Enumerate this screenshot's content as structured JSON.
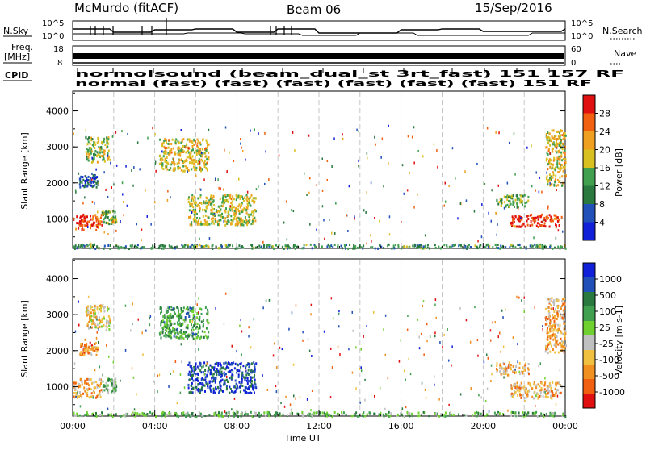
{
  "header": {
    "title": "McMurdo (fitACF)",
    "beam": "Beam 06",
    "date": "15/Sep/2016"
  },
  "summary_panels": {
    "nsky_label": "N.Sky",
    "nsky_ticks": [
      "10^5",
      "10^0"
    ],
    "nsearch_label": "N.Search",
    "freq_label_line1": "Freq.",
    "freq_label_line2": "[MHz]",
    "freq_ticks": [
      "18",
      "8"
    ],
    "nave_label": "Nave",
    "nave_ticks": [
      "60",
      "0"
    ],
    "cpid_label": "CPID",
    "cpid_line1": "normolsound (beam_dual_st 3rt_fast) 151 157 RF",
    "cpid_line2": "normal (fast) (fast) (fast) (fast) (fast) (fast) 151 RF"
  },
  "colors": {
    "power": [
      "#1020d8",
      "#2050b8",
      "#2a7a40",
      "#40a050",
      "#d8c020",
      "#f0a020",
      "#f06010",
      "#e01010"
    ],
    "velocity": [
      "#e01010",
      "#f06010",
      "#f09020",
      "#f0c040",
      "#c0c0c0",
      "#70d030",
      "#40a050",
      "#2a7a40",
      "#2050b8",
      "#1020d8"
    ]
  },
  "chart_data": [
    {
      "type": "heatmap",
      "name": "power",
      "xlabel": "",
      "ylabel": "Slant Range [km]",
      "x_range_hours": [
        0,
        24
      ],
      "ylim": [
        180,
        4550
      ],
      "y_ticks": [
        "1000",
        "2000",
        "3000",
        "4000"
      ],
      "colorbar": {
        "label": "Power [dB]",
        "ticks": [
          "4",
          "8",
          "12",
          "16",
          "20",
          "24",
          "28"
        ],
        "range": [
          0,
          32
        ]
      },
      "regions": [
        {
          "t": [
            0.0,
            1.4
          ],
          "r": [
            720,
            1150
          ],
          "level": 0.85
        },
        {
          "t": [
            1.4,
            2.1
          ],
          "r": [
            860,
            1250
          ],
          "level": 0.45
        },
        {
          "t": [
            0.3,
            1.2
          ],
          "r": [
            1900,
            2250
          ],
          "level": 0.2
        },
        {
          "t": [
            0.6,
            1.8
          ],
          "r": [
            2600,
            3300
          ],
          "level": 0.5
        },
        {
          "t": [
            4.2,
            6.6
          ],
          "r": [
            2350,
            3250
          ],
          "level": 0.6
        },
        {
          "t": [
            5.6,
            8.9
          ],
          "r": [
            850,
            1700
          ],
          "level": 0.55
        },
        {
          "t": [
            20.6,
            22.2
          ],
          "r": [
            1350,
            1700
          ],
          "level": 0.45
        },
        {
          "t": [
            21.3,
            23.8
          ],
          "r": [
            800,
            1150
          ],
          "level": 0.9
        },
        {
          "t": [
            23.0,
            24.0
          ],
          "r": [
            1950,
            3500
          ],
          "level": 0.6
        },
        {
          "t": [
            0.0,
            24.0
          ],
          "r": [
            200,
            320
          ],
          "level": 0.35
        }
      ]
    },
    {
      "type": "heatmap",
      "name": "velocity",
      "xlabel": "Time UT",
      "ylabel": "Slant Range [km]",
      "x_range_hours": [
        0,
        24
      ],
      "x_ticks": [
        "00:00",
        "04:00",
        "08:00",
        "12:00",
        "16:00",
        "20:00",
        "00:00"
      ],
      "ylim": [
        180,
        4550
      ],
      "y_ticks": [
        "1000",
        "2000",
        "3000",
        "4000"
      ],
      "colorbar": {
        "label": "Velocity [m s-1]",
        "ticks": [
          "-1000",
          "-500",
          "-100",
          "-25",
          "25",
          "100",
          "500",
          "1000"
        ],
        "range": [
          -1500,
          1500
        ]
      },
      "regions": [
        {
          "t": [
            0.0,
            1.4
          ],
          "r": [
            720,
            1250
          ],
          "level": 0.3
        },
        {
          "t": [
            1.4,
            2.1
          ],
          "r": [
            860,
            1250
          ],
          "level": 0.58
        },
        {
          "t": [
            0.3,
            1.2
          ],
          "r": [
            1900,
            2250
          ],
          "level": 0.25
        },
        {
          "t": [
            0.6,
            1.8
          ],
          "r": [
            2600,
            3300
          ],
          "level": 0.4
        },
        {
          "t": [
            4.2,
            6.6
          ],
          "r": [
            2350,
            3250
          ],
          "level": 0.65
        },
        {
          "t": [
            5.6,
            8.9
          ],
          "r": [
            850,
            1700
          ],
          "level": 0.88
        },
        {
          "t": [
            20.6,
            22.2
          ],
          "r": [
            1350,
            1700
          ],
          "level": 0.32
        },
        {
          "t": [
            21.3,
            23.8
          ],
          "r": [
            700,
            1150
          ],
          "level": 0.33
        },
        {
          "t": [
            23.0,
            24.0
          ],
          "r": [
            1950,
            3500
          ],
          "level": 0.3
        },
        {
          "t": [
            0.0,
            24.0
          ],
          "r": [
            200,
            320
          ],
          "level": 0.6
        }
      ]
    }
  ]
}
